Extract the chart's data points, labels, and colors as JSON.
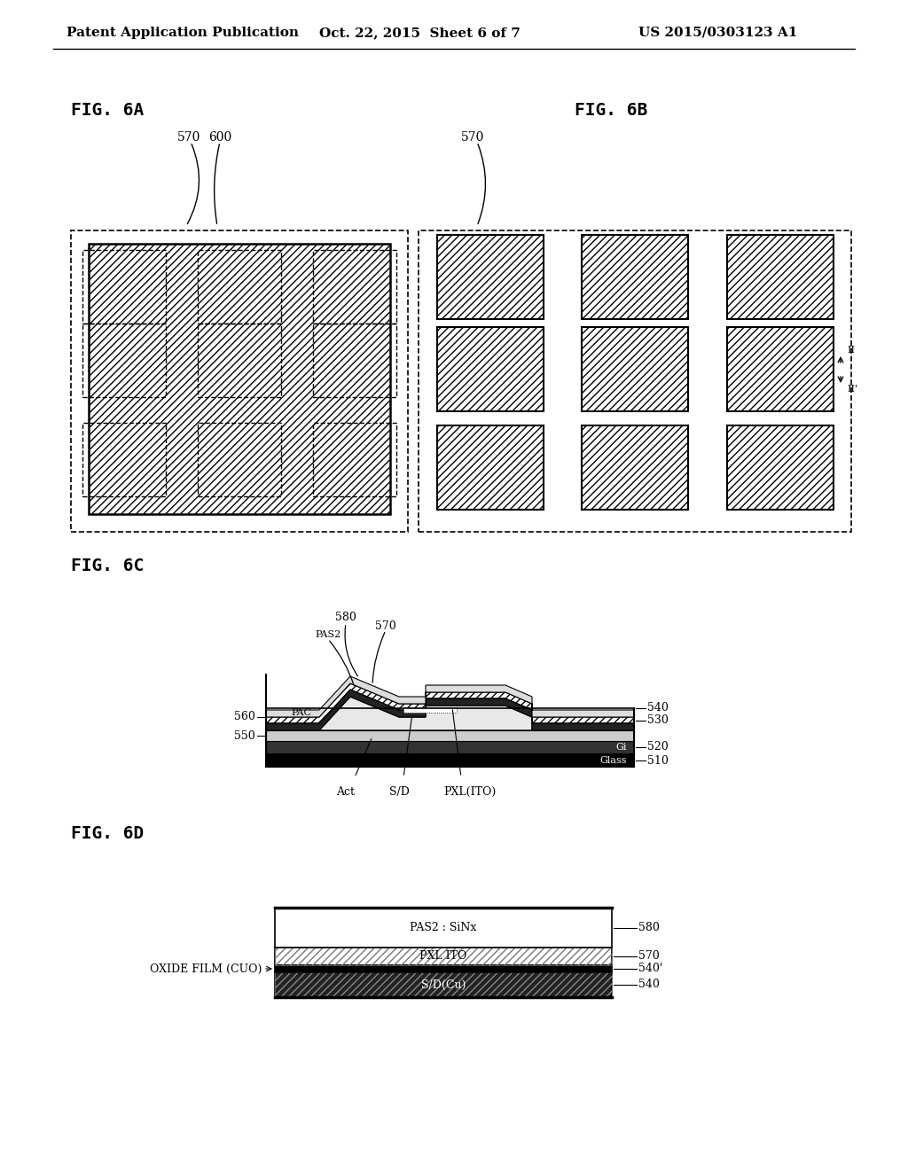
{
  "header_left": "Patent Application Publication",
  "header_mid": "Oct. 22, 2015  Sheet 6 of 7",
  "header_right": "US 2015/0303123 A1",
  "fig6a_label": "FIG. 6A",
  "fig6b_label": "FIG. 6B",
  "fig6c_label": "FIG. 6C",
  "fig6d_label": "FIG. 6D",
  "bg_color": "#ffffff",
  "lc": "#000000"
}
